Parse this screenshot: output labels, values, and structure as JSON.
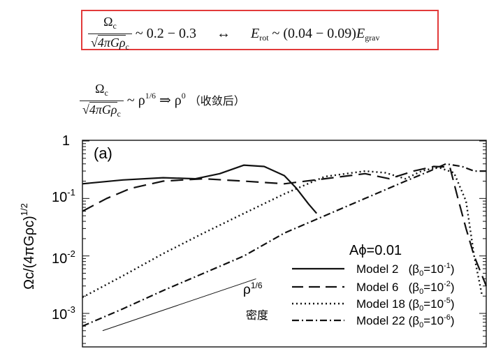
{
  "equations": {
    "eq1": {
      "omega": "Ω",
      "c_sub": "c",
      "den_sqrt": "√",
      "den_body": "4πGρ",
      "den_sub": "c",
      "rel": "~ 0.2 − 0.3",
      "arrow": "↔",
      "e_rot": "E",
      "rot_sub": "rot",
      "rhs": "~ (0.04 − 0.09)",
      "e_grav": "E",
      "grav_sub": "grav"
    },
    "eq2": {
      "omega": "Ω",
      "c_sub": "c",
      "den_sqrt": "√",
      "den_body": "4πGρ",
      "den_sub": "c",
      "rel": "~ ρ",
      "exp1": "1/6",
      "implies": "⇒ ρ",
      "exp2": "0",
      "note": "（收敛后）"
    }
  },
  "chart_data": {
    "type": "line",
    "panel_label": "(a)",
    "ylabel": "Ωc/(4πGρc)^1/2",
    "yscale": "log",
    "ylim": [
      0.0005,
      1
    ],
    "xlim": [
      0,
      1
    ],
    "yticks": [
      "1",
      "10^-1",
      "10^-2",
      "10^-3"
    ],
    "legend_title": "Aϕ=0.01",
    "legend_position": "lower-right",
    "series": [
      {
        "name": "Model 2 (β0=10^-1)",
        "style": "solid",
        "x": [
          0.0,
          0.1,
          0.2,
          0.28,
          0.34,
          0.4,
          0.45,
          0.5,
          0.53,
          0.56,
          0.58
        ],
        "y": [
          0.18,
          0.21,
          0.23,
          0.22,
          0.27,
          0.38,
          0.36,
          0.25,
          0.15,
          0.08,
          0.055
        ]
      },
      {
        "name": "Model 6 (β0=10^-2)",
        "style": "dashed",
        "x": [
          0.0,
          0.06,
          0.12,
          0.2,
          0.3,
          0.4,
          0.5,
          0.6,
          0.7,
          0.76,
          0.82,
          0.87,
          0.91,
          0.93,
          0.95,
          0.97,
          1.0
        ],
        "y": [
          0.06,
          0.1,
          0.15,
          0.2,
          0.22,
          0.2,
          0.18,
          0.22,
          0.27,
          0.22,
          0.3,
          0.36,
          0.35,
          0.1,
          0.03,
          0.01,
          0.003
        ]
      },
      {
        "name": "Model 18 (β0=10^-5)",
        "style": "dotted",
        "x": [
          0.0,
          0.1,
          0.2,
          0.3,
          0.4,
          0.5,
          0.6,
          0.7,
          0.75,
          0.8,
          0.84,
          0.88,
          0.92,
          0.95,
          0.97,
          0.99
        ],
        "y": [
          0.0019,
          0.0045,
          0.011,
          0.025,
          0.055,
          0.12,
          0.24,
          0.3,
          0.28,
          0.22,
          0.3,
          0.35,
          0.28,
          0.09,
          0.01,
          0.002
        ]
      },
      {
        "name": "Model 22 (β0=10^-6)",
        "style": "dashdot",
        "x": [
          0.0,
          0.1,
          0.2,
          0.3,
          0.4,
          0.5,
          0.6,
          0.7,
          0.8,
          0.86,
          0.9,
          0.94,
          0.97,
          1.0
        ],
        "y": [
          0.0006,
          0.0012,
          0.0025,
          0.005,
          0.01,
          0.025,
          0.05,
          0.1,
          0.2,
          0.3,
          0.4,
          0.36,
          0.3,
          0.3
        ]
      }
    ],
    "guide_line": {
      "label": "ρ^1/6",
      "x": [
        0.05,
        0.43
      ],
      "y": [
        0.0005,
        0.004
      ]
    },
    "guide_note": "密度"
  }
}
